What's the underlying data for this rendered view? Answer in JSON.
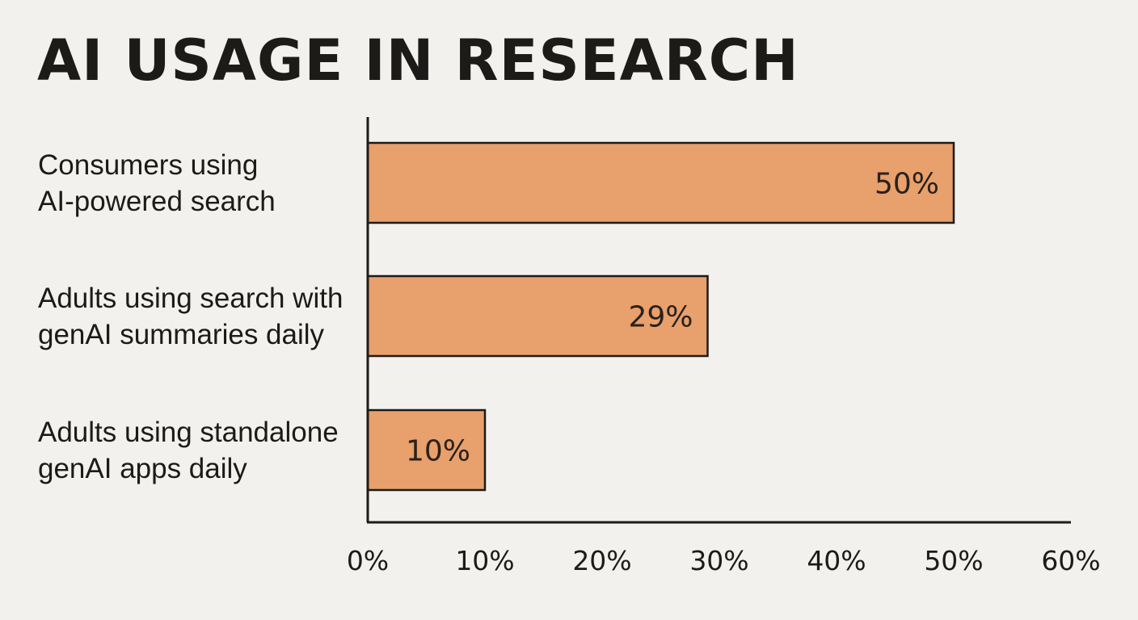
{
  "chart_data": {
    "type": "bar",
    "orientation": "horizontal",
    "title": "AI USAGE IN RESEARCH",
    "xlabel": "",
    "ylabel": "",
    "categories": [
      [
        "Consumers using",
        "AI-powered search"
      ],
      [
        "Adults using search with",
        "genAI summaries daily"
      ],
      [
        "Adults using standalone",
        "genAI apps daily"
      ]
    ],
    "values": [
      50,
      29,
      10
    ],
    "value_labels": [
      "50%",
      "29%",
      "10%"
    ],
    "xlim": [
      0,
      60
    ],
    "xticks": [
      0,
      10,
      20,
      30,
      40,
      50,
      60
    ],
    "xtick_labels": [
      "0%",
      "10%",
      "20%",
      "30%",
      "40%",
      "50%",
      "60%"
    ],
    "grid": false,
    "legend": "none",
    "bar_color": "#e8a06c",
    "bar_edge_color": "#1d1b19"
  }
}
